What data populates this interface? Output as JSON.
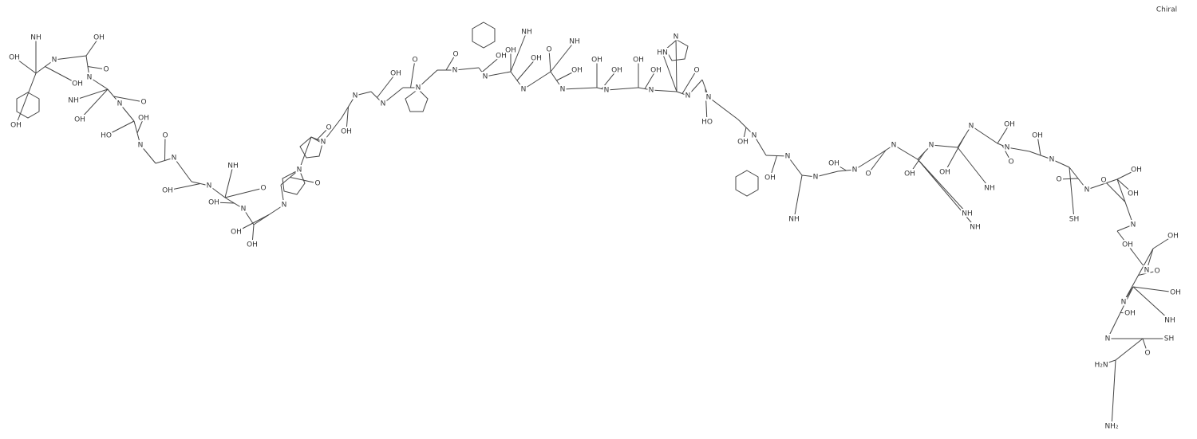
{
  "chiral_label": "Chiral",
  "residues": [
    [
      "N",
      "OH",
      "NH",
      "OH",
      "OH"
    ],
    [
      "N",
      "O",
      "OH"
    ],
    [
      "N",
      "O",
      "NH",
      "OH"
    ],
    [
      "N",
      "OH",
      "HO"
    ],
    [
      "N",
      "O"
    ],
    [
      "N",
      "OH"
    ],
    [
      "N",
      "OH",
      "NH",
      "O"
    ],
    [
      "N",
      "OH",
      "OH"
    ],
    [
      "N",
      "O"
    ],
    [
      "N",
      "O"
    ],
    [
      "N",
      "OH"
    ],
    [
      "N",
      "OH"
    ],
    [
      "N",
      "O"
    ],
    [
      "N",
      "O"
    ],
    [
      "N",
      "OH"
    ],
    [
      "N",
      "OH",
      "OH",
      "NH"
    ],
    [
      "N",
      "OH",
      "O",
      "NH"
    ],
    [
      "N",
      "OH",
      "OH"
    ],
    [
      "N",
      "OH",
      "OH"
    ],
    [
      "N",
      "O",
      "HN",
      "N"
    ],
    [
      "N",
      "HO"
    ],
    [
      "N",
      "OH"
    ],
    [
      "N",
      "OH"
    ],
    [
      "N",
      "NH"
    ],
    [
      "N",
      "OH"
    ],
    [
      "N",
      "O"
    ],
    [
      "N",
      "OH",
      "NH",
      "NH"
    ],
    [
      "N",
      "OH",
      "NH"
    ],
    [
      "N",
      "O",
      "OH"
    ],
    [
      "N",
      "OH"
    ],
    [
      "N",
      "O",
      "SH"
    ],
    [
      "N",
      "O",
      "OH",
      "OH"
    ],
    [
      "N",
      "OH"
    ],
    [
      "N",
      "O",
      "OH"
    ],
    [
      "N",
      "OH",
      "OH",
      "NH"
    ],
    [
      "O",
      "SH"
    ],
    [
      "H₂N",
      "NH₂"
    ]
  ]
}
